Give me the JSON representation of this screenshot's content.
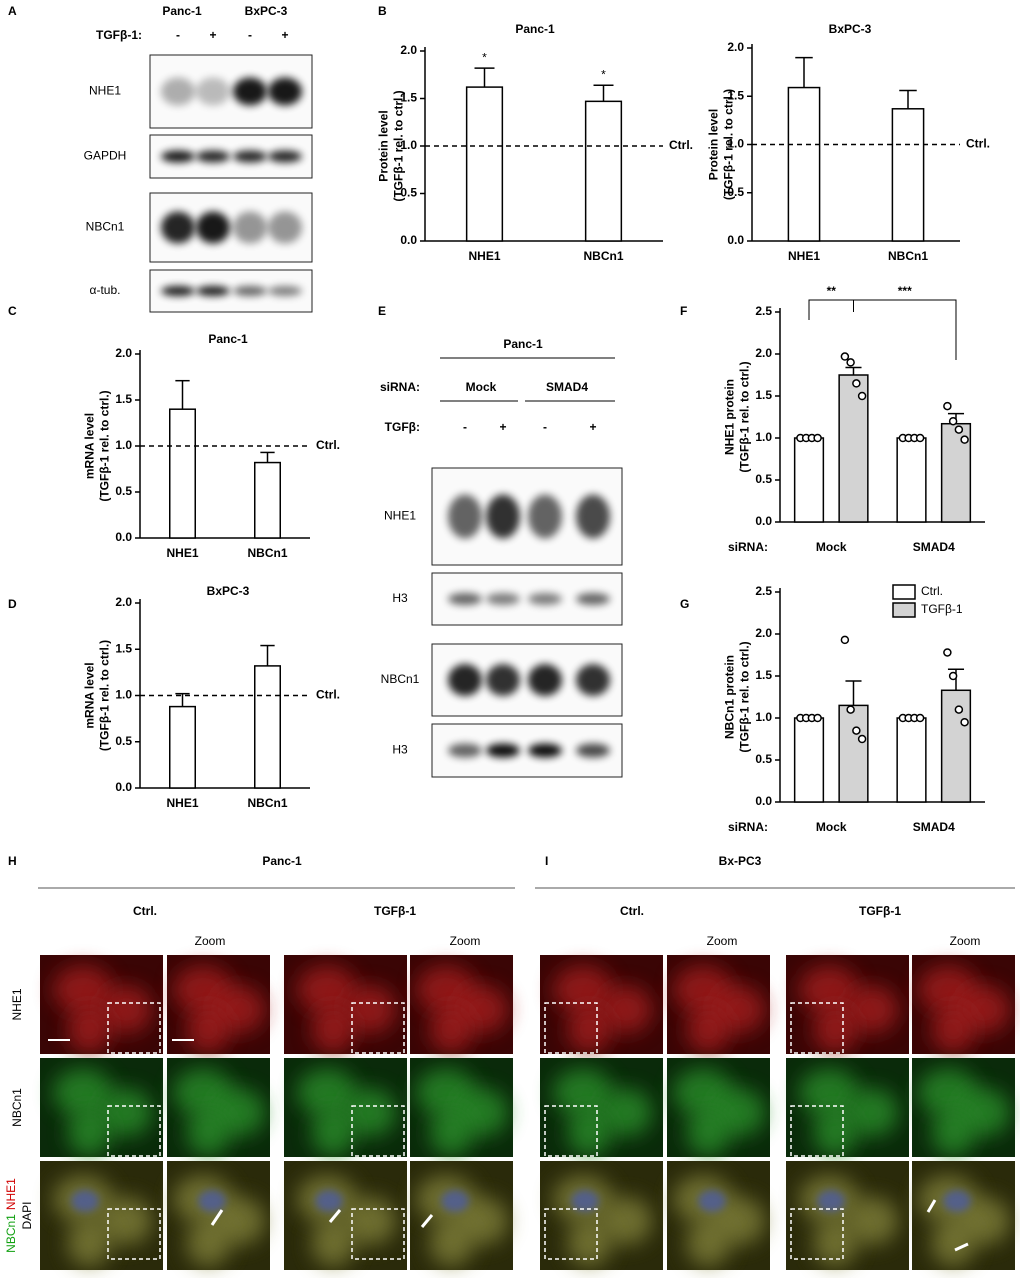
{
  "panel_letters": [
    "A",
    "B",
    "C",
    "D",
    "E",
    "F",
    "G",
    "H",
    "I"
  ],
  "blot_a": {
    "cell_lines": [
      "Panc-1",
      "BxPC-3"
    ],
    "treatment": "TGFβ-1:",
    "signs": [
      "-",
      "+",
      "-",
      "+"
    ],
    "rows": [
      "NHE1",
      "GAPDH",
      "NBCn1",
      "α-tub."
    ]
  },
  "blot_e": {
    "cell_line": "Panc-1",
    "sirna_label": "siRNA:",
    "sirna": [
      "Mock",
      "SMAD4"
    ],
    "treatment": "TGFβ:",
    "signs": [
      "-",
      "+",
      "-",
      "+"
    ],
    "rows": [
      "NHE1",
      "H3",
      "NBCn1",
      "H3"
    ]
  },
  "imaging": [
    {
      "cell_line": "Panc-1",
      "conditions": [
        "Ctrl.",
        "TGFβ-1"
      ],
      "zoom": [
        "Zoom",
        "Zoom"
      ]
    },
    {
      "cell_line": "Bx-PC3",
      "conditions": [
        "Ctrl.",
        "TGFβ-1"
      ],
      "zoom": [
        "Zoom",
        "Zoom"
      ]
    }
  ],
  "stain_rows": [
    [
      "NHE1"
    ],
    [
      "NBCn1"
    ],
    [
      "NBCn1",
      "NHE1",
      "DAPI"
    ]
  ],
  "chart_data": [
    {
      "type": "bar",
      "title": "Panc-1",
      "ylabel": [
        "Protein level",
        "(TGFβ-1 rel. to ctrl.)"
      ],
      "categories": [
        "NHE1",
        "NBCn1"
      ],
      "series": [
        {
          "color": "#ffffff",
          "values": [
            1.62,
            1.47
          ],
          "errors": [
            0.2,
            0.17
          ]
        }
      ],
      "annotations": [
        "*",
        "*"
      ],
      "reference": {
        "value": 1,
        "label": "Ctrl."
      },
      "ylim": [
        0,
        2
      ],
      "yticks": [
        {
          "value": 0,
          "label": "0.0"
        },
        0.5,
        {
          "value": 1,
          "label": "1.0"
        },
        1.5,
        {
          "value": 2,
          "label": "2.0"
        }
      ]
    },
    {
      "type": "bar",
      "title": "BxPC-3",
      "ylabel": [
        "Protein level",
        "(TGFβ-1 rel. to ctrl.)"
      ],
      "categories": [
        "NHE1",
        "NBCn1"
      ],
      "series": [
        {
          "color": "#ffffff",
          "values": [
            1.59,
            1.37
          ],
          "errors": [
            0.31,
            0.19
          ]
        }
      ],
      "reference": {
        "value": 1,
        "label": "Ctrl."
      },
      "ylim": [
        0,
        2
      ],
      "yticks": [
        {
          "value": 0,
          "label": "0.0"
        },
        0.5,
        {
          "value": 1,
          "label": "1.0"
        },
        1.5,
        {
          "value": 2,
          "label": "2.0"
        }
      ]
    },
    {
      "type": "bar",
      "title": "Panc-1",
      "ylabel": [
        "mRNA level",
        "(TGFβ-1 rel. to ctrl.)"
      ],
      "categories": [
        "NHE1",
        "NBCn1"
      ],
      "series": [
        {
          "color": "#ffffff",
          "values": [
            1.4,
            0.82
          ],
          "errors": [
            0.31,
            0.11
          ]
        }
      ],
      "reference": {
        "value": 1,
        "label": "Ctrl."
      },
      "ylim": [
        0,
        2
      ],
      "yticks": [
        {
          "value": 0,
          "label": "0.0"
        },
        0.5,
        {
          "value": 1,
          "label": "1.0"
        },
        1.5,
        {
          "value": 2,
          "label": "2.0"
        }
      ]
    },
    {
      "type": "bar",
      "title": "BxPC-3",
      "ylabel": [
        "mRNA level",
        "(TGFβ-1 rel. to ctrl.)"
      ],
      "categories": [
        "NHE1",
        "NBCn1"
      ],
      "series": [
        {
          "color": "#ffffff",
          "values": [
            0.88,
            1.32
          ],
          "errors": [
            0.14,
            0.22
          ]
        }
      ],
      "reference": {
        "value": 1,
        "label": "Ctrl."
      },
      "ylim": [
        0,
        2
      ],
      "yticks": [
        {
          "value": 0,
          "label": "0.0"
        },
        0.5,
        {
          "value": 1,
          "label": "1.0"
        },
        1.5,
        {
          "value": 2,
          "label": "2.0"
        }
      ]
    },
    {
      "type": "bar",
      "ylabel": [
        "NHE1 protein",
        "(TGFβ-1 rel. to ctrl.)"
      ],
      "xlabel": "siRNA:",
      "categories": [
        "Mock",
        "SMAD4"
      ],
      "series": [
        {
          "name": "Ctrl.",
          "color": "#ffffff",
          "values": [
            1,
            1
          ],
          "points": [
            [
              1,
              1,
              1,
              1
            ],
            [
              1,
              1,
              1,
              1
            ]
          ]
        },
        {
          "name": "TGFβ-1",
          "color": "#d3d3d3",
          "values": [
            1.75,
            1.17
          ],
          "errors": [
            0.09,
            0.12
          ],
          "points": [
            [
              1.97,
              1.9,
              1.65,
              1.5
            ],
            [
              1.38,
              1.2,
              1.1,
              0.98
            ]
          ]
        }
      ],
      "significance": [
        "**",
        "***"
      ],
      "ylim": [
        0,
        2.5
      ],
      "yticks": [
        {
          "value": 0,
          "label": "0.0"
        },
        0.5,
        {
          "value": 1,
          "label": "1.0"
        },
        1.5,
        {
          "value": 2,
          "label": "2.0"
        },
        2.5
      ]
    },
    {
      "type": "bar",
      "ylabel": [
        "NBCn1 protein",
        "(TGFβ-1 rel. to ctrl.)"
      ],
      "xlabel": "siRNA:",
      "categories": [
        "Mock",
        "SMAD4"
      ],
      "series": [
        {
          "name": "Ctrl.",
          "color": "#ffffff",
          "values": [
            1,
            1
          ],
          "points": [
            [
              1,
              1,
              1,
              1
            ],
            [
              1,
              1,
              1,
              1
            ]
          ]
        },
        {
          "name": "TGFβ-1",
          "color": "#d3d3d3",
          "values": [
            1.15,
            1.33
          ],
          "errors": [
            0.29,
            0.25
          ],
          "points": [
            [
              1.93,
              1.1,
              0.85,
              0.75
            ],
            [
              1.78,
              1.5,
              1.1,
              0.95
            ]
          ]
        }
      ],
      "legend": "top-right",
      "ylim": [
        0,
        2.5
      ],
      "yticks": [
        {
          "value": 0,
          "label": "0.0"
        },
        0.5,
        {
          "value": 1,
          "label": "1.0"
        },
        1.5,
        {
          "value": 2,
          "label": "2.0"
        },
        2.5
      ]
    }
  ]
}
